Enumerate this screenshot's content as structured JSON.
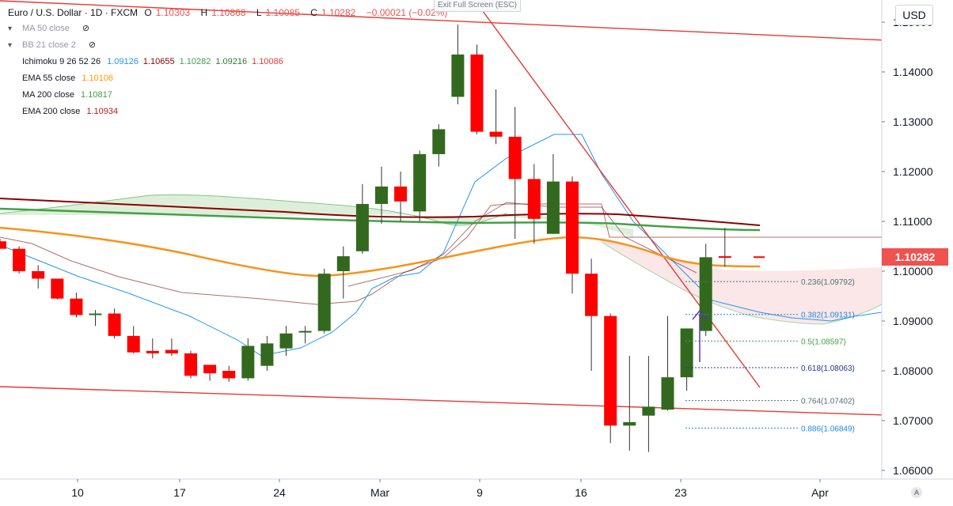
{
  "header": {
    "symbol": "Euro / U.S. Dollar · 1D · FXCM",
    "o_key": "O",
    "o_val": "1.10303",
    "h_key": "H",
    "h_val": "1.10868",
    "l_key": "L",
    "l_val": "1.10085",
    "c_key": "C",
    "c_val": "1.10282",
    "change": "−0.00021 (−0.02%)"
  },
  "exit_fullscreen": "Exit Full Screen (ESC)",
  "currency": "USD",
  "auto_label": "A",
  "last_price": "1.10282",
  "indicators": [
    {
      "name": "MA 50 close",
      "values": [],
      "hidden": true
    },
    {
      "name": "BB 21 close 2",
      "values": [],
      "hidden": true
    },
    {
      "name": "Ichimoku 9 26 52 26",
      "values": [
        {
          "v": "1.09126",
          "color": "#2196f3"
        },
        {
          "v": "1.10655",
          "color": "#8b0000"
        },
        {
          "v": "1.10282",
          "color": "#43a047"
        },
        {
          "v": "1.09216",
          "color": "#2e7d32"
        },
        {
          "v": "1.10086",
          "color": "#e53935"
        }
      ]
    },
    {
      "name": "EMA 55 close",
      "values": [
        {
          "v": "1.10106",
          "color": "#ff9800"
        }
      ]
    },
    {
      "name": "MA 200 close",
      "values": [
        {
          "v": "1.10817",
          "color": "#43a047"
        }
      ]
    },
    {
      "name": "EMA 200 close",
      "values": [
        {
          "v": "1.10934",
          "color": "#b71c1c"
        }
      ]
    }
  ],
  "chart_data": {
    "type": "candlestick",
    "y_ticks": [
      "1.06000",
      "1.07000",
      "1.08000",
      "1.09000",
      "1.10000",
      "1.11000",
      "1.12000",
      "1.13000",
      "1.14000",
      "1.15000"
    ],
    "ylim": [
      1.0596,
      1.1535
    ],
    "x_ticks": [
      "10",
      "17",
      "24",
      "Mar",
      "9",
      "16",
      "23",
      "Apr"
    ],
    "candles": [
      {
        "o": 1.106,
        "h": 1.1065,
        "l": 1.1045,
        "c": 1.1045
      },
      {
        "o": 1.1045,
        "h": 1.105,
        "l": 1.0995,
        "c": 1.1
      },
      {
        "o": 1.1,
        "h": 1.1012,
        "l": 1.0965,
        "c": 1.0985
      },
      {
        "o": 1.0985,
        "h": 1.0985,
        "l": 1.0943,
        "c": 1.0945
      },
      {
        "o": 1.0945,
        "h": 1.0957,
        "l": 1.0907,
        "c": 1.0912
      },
      {
        "o": 1.0912,
        "h": 1.0922,
        "l": 1.089,
        "c": 1.0915
      },
      {
        "o": 1.0915,
        "h": 1.0925,
        "l": 1.0865,
        "c": 1.087
      },
      {
        "o": 1.087,
        "h": 1.089,
        "l": 1.0835,
        "c": 1.0837
      },
      {
        "o": 1.084,
        "h": 1.0865,
        "l": 1.0825,
        "c": 1.0835
      },
      {
        "o": 1.0842,
        "h": 1.0865,
        "l": 1.083,
        "c": 1.0835
      },
      {
        "o": 1.0835,
        "h": 1.084,
        "l": 1.0785,
        "c": 1.079
      },
      {
        "o": 1.0812,
        "h": 1.0812,
        "l": 1.078,
        "c": 1.0795
      },
      {
        "o": 1.08,
        "h": 1.081,
        "l": 1.0778,
        "c": 1.0785
      },
      {
        "o": 1.0785,
        "h": 1.0865,
        "l": 1.078,
        "c": 1.085
      },
      {
        "o": 1.081,
        "h": 1.087,
        "l": 1.08,
        "c": 1.0855
      },
      {
        "o": 1.0845,
        "h": 1.089,
        "l": 1.083,
        "c": 1.0875
      },
      {
        "o": 1.088,
        "h": 1.089,
        "l": 1.0855,
        "c": 1.088
      },
      {
        "o": 1.088,
        "h": 1.1005,
        "l": 1.0875,
        "c": 1.0995
      },
      {
        "o": 1.1,
        "h": 1.105,
        "l": 1.0945,
        "c": 1.103
      },
      {
        "o": 1.104,
        "h": 1.1175,
        "l": 1.1035,
        "c": 1.1135
      },
      {
        "o": 1.1135,
        "h": 1.121,
        "l": 1.1095,
        "c": 1.117
      },
      {
        "o": 1.117,
        "h": 1.12,
        "l": 1.11,
        "c": 1.114
      },
      {
        "o": 1.112,
        "h": 1.1242,
        "l": 1.11,
        "c": 1.1235
      },
      {
        "o": 1.1235,
        "h": 1.1295,
        "l": 1.121,
        "c": 1.1285
      },
      {
        "o": 1.135,
        "h": 1.1495,
        "l": 1.1335,
        "c": 1.1435
      },
      {
        "o": 1.1435,
        "h": 1.1455,
        "l": 1.1275,
        "c": 1.128
      },
      {
        "o": 1.128,
        "h": 1.1365,
        "l": 1.1255,
        "c": 1.127
      },
      {
        "o": 1.127,
        "h": 1.133,
        "l": 1.1065,
        "c": 1.1185
      },
      {
        "o": 1.1185,
        "h": 1.1215,
        "l": 1.1055,
        "c": 1.1105
      },
      {
        "o": 1.1075,
        "h": 1.1235,
        "l": 1.1075,
        "c": 1.118
      },
      {
        "o": 1.118,
        "h": 1.119,
        "l": 1.0955,
        "c": 1.0995
      },
      {
        "o": 1.0995,
        "h": 1.1025,
        "l": 1.08,
        "c": 1.091
      },
      {
        "o": 1.091,
        "h": 1.0915,
        "l": 1.0655,
        "c": 1.069
      },
      {
        "o": 1.069,
        "h": 1.083,
        "l": 1.064,
        "c": 1.0697
      },
      {
        "o": 1.071,
        "h": 1.083,
        "l": 1.0637,
        "c": 1.0728
      },
      {
        "o": 1.0722,
        "h": 1.091,
        "l": 1.072,
        "c": 1.0787
      },
      {
        "o": 1.0787,
        "h": 1.0885,
        "l": 1.076,
        "c": 1.0885
      },
      {
        "o": 1.088,
        "h": 1.1055,
        "l": 1.087,
        "c": 1.1028
      },
      {
        "o": 1.103,
        "h": 1.1087,
        "l": 1.1009,
        "c": 1.1028
      }
    ],
    "fibonacci": [
      {
        "label": "0.236(1.09792)",
        "price": 1.09792,
        "color": "#546e7a"
      },
      {
        "label": "0.382(1.09131)",
        "price": 1.09131,
        "color": "#1e88e5"
      },
      {
        "label": "0.5(1.08597)",
        "price": 1.08597,
        "color": "#43a047"
      },
      {
        "label": "0.618(1.08063)",
        "price": 1.08063,
        "color": "#283593"
      },
      {
        "label": "0.764(1.07402)",
        "price": 1.07402,
        "color": "#546e7a"
      },
      {
        "label": "0.886(1.06849)",
        "price": 1.06849,
        "color": "#1e88e5"
      }
    ],
    "colors": {
      "up": "#33691e",
      "down": "#ff0000",
      "ema55": "#f7931a",
      "ma200": "#43a047",
      "ema200": "#8b0000",
      "trend": "#e53935",
      "tenkan": "#2196f3",
      "cloud": "#d7ecd2",
      "cloud_bear": "#fbe4e4"
    },
    "grid": false
  }
}
